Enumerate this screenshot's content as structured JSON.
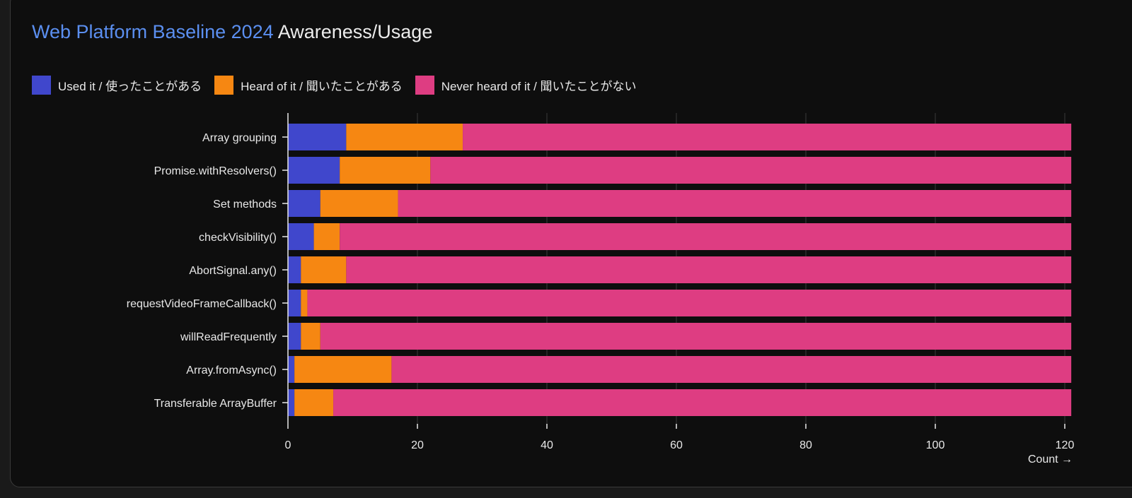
{
  "title": {
    "link_text": "Web Platform Baseline 2024",
    "rest": "Awareness/Usage"
  },
  "colors": {
    "used": "#4047cc",
    "heard": "#f68712",
    "never": "#de3d82",
    "title_link": "#5b8ff0"
  },
  "chart_data": {
    "type": "bar",
    "orientation": "horizontal",
    "stacked": true,
    "categories": [
      "Array grouping",
      "Promise.withResolvers()",
      "Set methods",
      "checkVisibility()",
      "AbortSignal.any()",
      "requestVideoFrameCallback()",
      "willReadFrequently",
      "Array.fromAsync()",
      "Transferable ArrayBuffer"
    ],
    "series": [
      {
        "name": "Used it / 使ったことがある",
        "values": [
          9,
          8,
          5,
          4,
          2,
          2,
          2,
          1,
          1
        ]
      },
      {
        "name": "Heard of it / 聞いたことがある",
        "values": [
          18,
          14,
          12,
          4,
          7,
          1,
          3,
          15,
          6
        ]
      },
      {
        "name": "Never heard of it / 聞いたことがない",
        "values": [
          94,
          99,
          104,
          113,
          112,
          118,
          116,
          105,
          114
        ]
      }
    ],
    "xlabel": "Count →",
    "xlim": [
      0,
      121
    ],
    "xticks": [
      "0",
      "20",
      "40",
      "60",
      "80",
      "100",
      "120"
    ],
    "grid": "vertical",
    "legend": "top-left"
  }
}
